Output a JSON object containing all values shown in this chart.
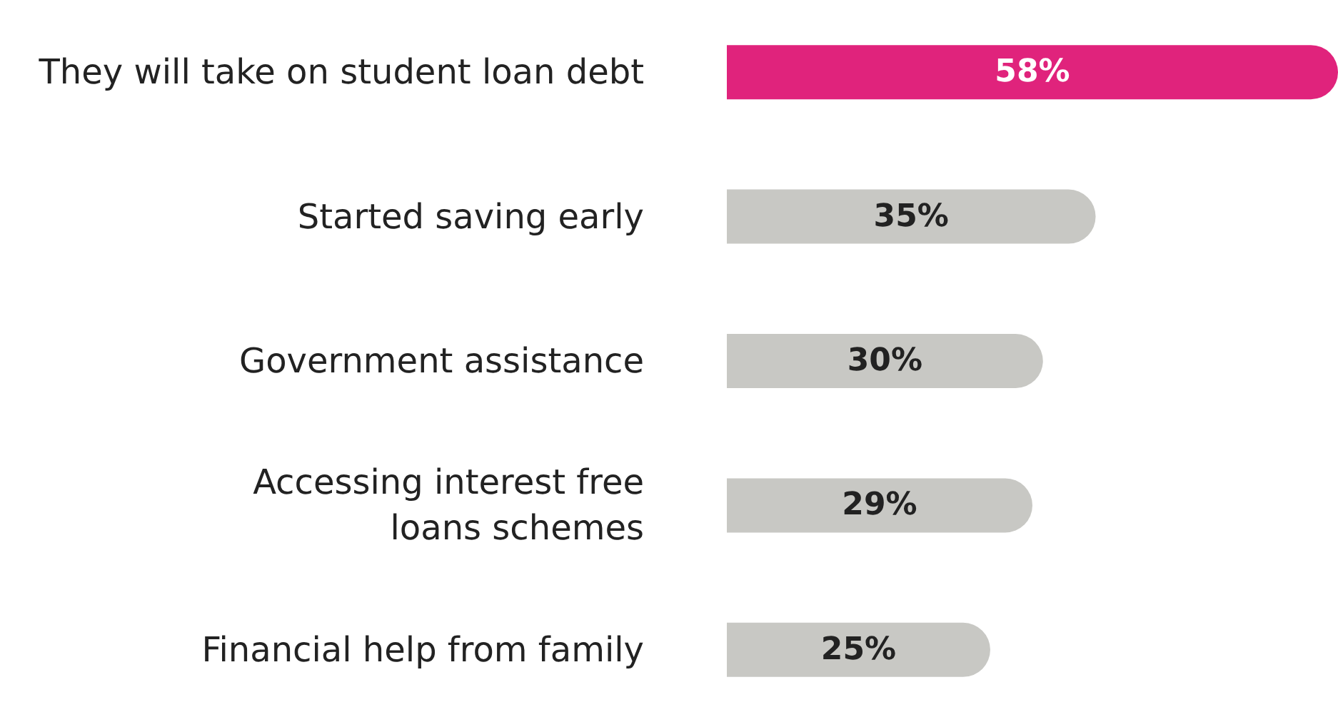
{
  "chart_data": {
    "type": "bar",
    "orientation": "horizontal",
    "categories": [
      "They will take on student loan debt",
      "Started saving early",
      "Government assistance",
      "Accessing interest free loans schemes",
      "Financial help from family"
    ],
    "values": [
      58,
      35,
      30,
      29,
      25
    ],
    "colors": [
      "#e0237c",
      "#c8c8c4",
      "#c8c8c4",
      "#c8c8c4",
      "#c8c8c4"
    ],
    "value_labels": [
      "58%",
      "35%",
      "30%",
      "29%",
      "25%"
    ]
  }
}
